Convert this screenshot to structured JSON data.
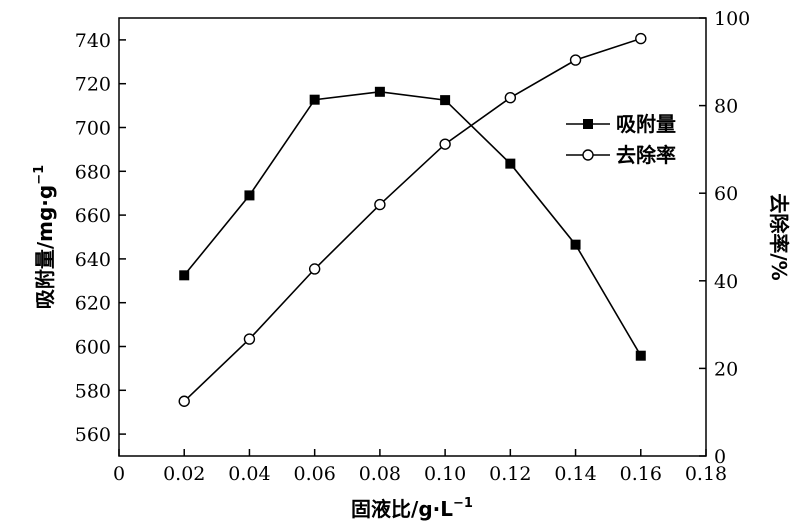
{
  "chart_data": {
    "type": "line",
    "x_axis": {
      "label": "固液比/g·L",
      "label_sup": "−1",
      "min": 0,
      "max": 0.18,
      "ticks": [
        0,
        0.02,
        0.04,
        0.06,
        0.08,
        0.1,
        0.12,
        0.14,
        0.16,
        0.18
      ],
      "tick_labels": [
        "0",
        "0.02",
        "0.04",
        "0.06",
        "0.08",
        "0.10",
        "0.12",
        "0.14",
        "0.16",
        "0.18"
      ]
    },
    "y_left": {
      "label": "吸附量/mg·g",
      "label_sup": "−1",
      "min": 550,
      "max": 750,
      "ticks": [
        560,
        580,
        600,
        620,
        640,
        660,
        680,
        700,
        720,
        740
      ],
      "tick_labels": [
        "560",
        "580",
        "600",
        "620",
        "640",
        "660",
        "680",
        "700",
        "720",
        "740"
      ]
    },
    "y_right": {
      "label": "去除率/%",
      "min": 0,
      "max": 100,
      "ticks": [
        0,
        20,
        40,
        60,
        80,
        100
      ],
      "tick_labels": [
        "0",
        "20",
        "40",
        "60",
        "80",
        "100"
      ]
    },
    "x": [
      0.02,
      0.04,
      0.06,
      0.08,
      0.1,
      0.12,
      0.14,
      0.16
    ],
    "series": [
      {
        "name": "吸附量",
        "axis": "left",
        "marker": "filled-square",
        "values": [
          632.5,
          669,
          712.7,
          716.3,
          712.5,
          683.5,
          646.5,
          595.8
        ]
      },
      {
        "name": "去除率",
        "axis": "right",
        "marker": "open-circle",
        "values": [
          12.5,
          26.7,
          42.7,
          57.4,
          71.2,
          81.8,
          90.4,
          95.3
        ]
      }
    ],
    "legend": {
      "placement": "upper-right-inside"
    },
    "grid": false
  }
}
